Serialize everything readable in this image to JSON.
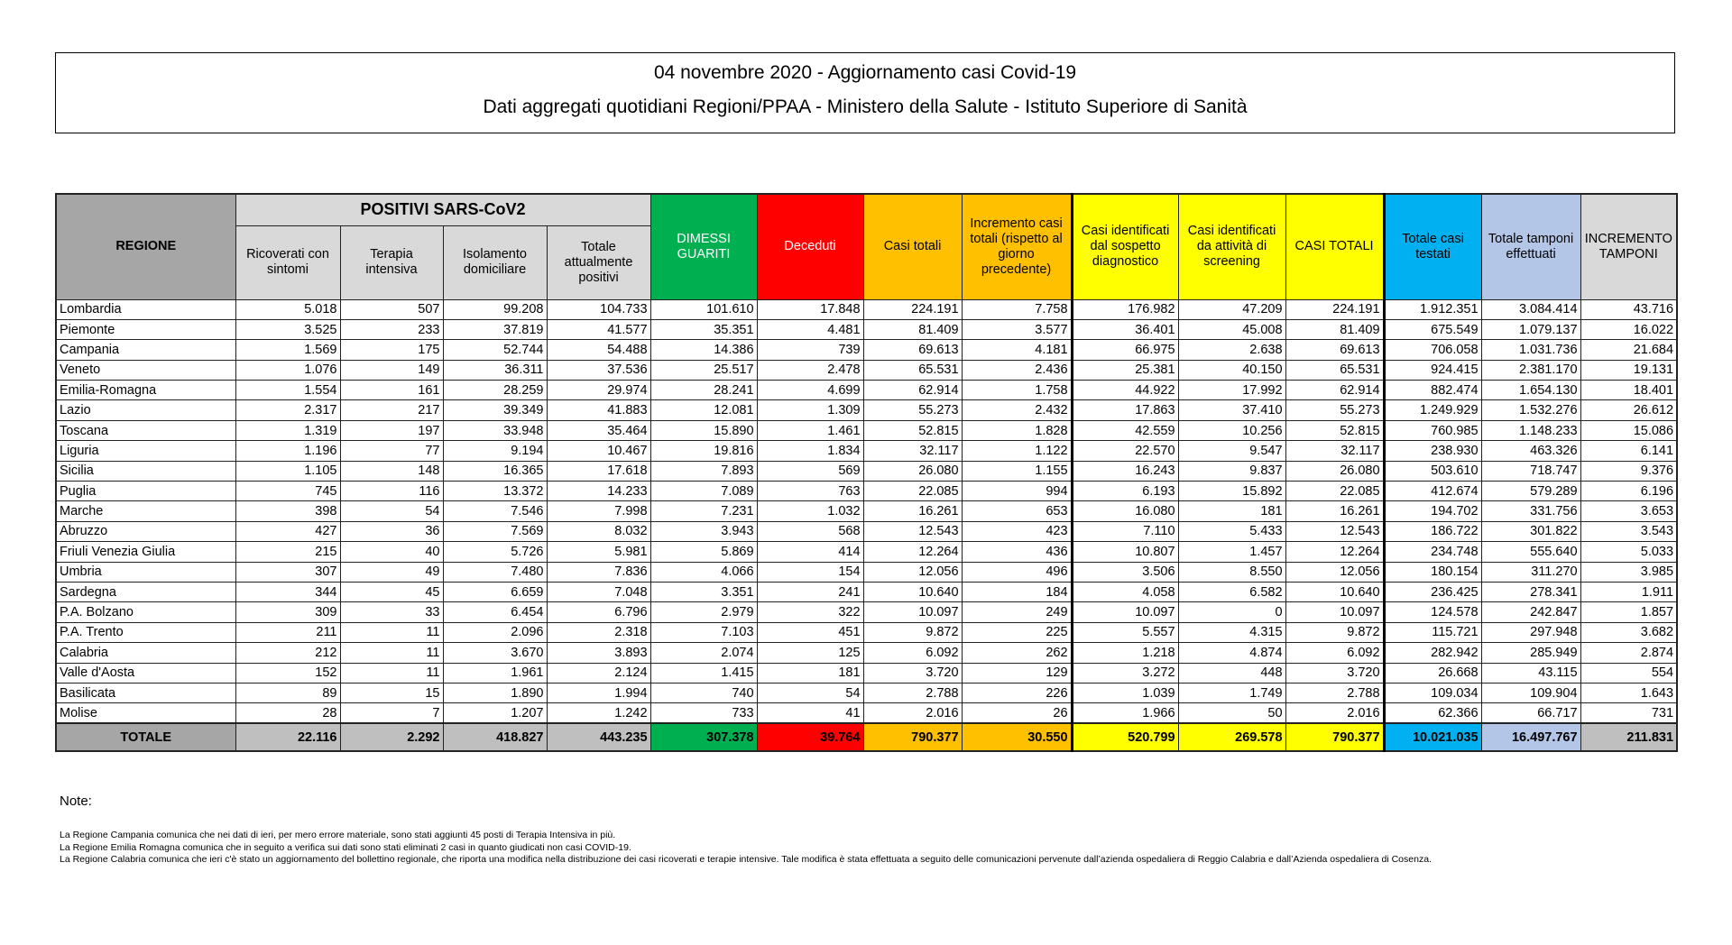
{
  "header": {
    "title": "04 novembre 2020 - Aggiornamento casi Covid-19",
    "subtitle": "Dati aggregati quotidiani Regioni/PPAA - Ministero della Salute - Istituto Superiore di Sanità"
  },
  "table": {
    "group_header": "POSITIVI SARS-CoV2",
    "columns": [
      "REGIONE",
      "Ricoverati con sintomi",
      "Terapia intensiva",
      "Isolamento domiciliare",
      "Totale attualmente positivi",
      "DIMESSI GUARITI",
      "Deceduti",
      "Casi totali",
      "Incremento casi totali (rispetto al giorno precedente)",
      "Casi identificati dal sospetto diagnostico",
      "Casi identificati da attività di screening",
      "CASI TOTALI",
      "Totale casi testati",
      "Totale tamponi effettuati",
      "INCREMENTO TAMPONI"
    ],
    "rows": [
      [
        "Lombardia",
        "5.018",
        "507",
        "99.208",
        "104.733",
        "101.610",
        "17.848",
        "224.191",
        "7.758",
        "176.982",
        "47.209",
        "224.191",
        "1.912.351",
        "3.084.414",
        "43.716"
      ],
      [
        "Piemonte",
        "3.525",
        "233",
        "37.819",
        "41.577",
        "35.351",
        "4.481",
        "81.409",
        "3.577",
        "36.401",
        "45.008",
        "81.409",
        "675.549",
        "1.079.137",
        "16.022"
      ],
      [
        "Campania",
        "1.569",
        "175",
        "52.744",
        "54.488",
        "14.386",
        "739",
        "69.613",
        "4.181",
        "66.975",
        "2.638",
        "69.613",
        "706.058",
        "1.031.736",
        "21.684"
      ],
      [
        "Veneto",
        "1.076",
        "149",
        "36.311",
        "37.536",
        "25.517",
        "2.478",
        "65.531",
        "2.436",
        "25.381",
        "40.150",
        "65.531",
        "924.415",
        "2.381.170",
        "19.131"
      ],
      [
        "Emilia-Romagna",
        "1.554",
        "161",
        "28.259",
        "29.974",
        "28.241",
        "4.699",
        "62.914",
        "1.758",
        "44.922",
        "17.992",
        "62.914",
        "882.474",
        "1.654.130",
        "18.401"
      ],
      [
        "Lazio",
        "2.317",
        "217",
        "39.349",
        "41.883",
        "12.081",
        "1.309",
        "55.273",
        "2.432",
        "17.863",
        "37.410",
        "55.273",
        "1.249.929",
        "1.532.276",
        "26.612"
      ],
      [
        "Toscana",
        "1.319",
        "197",
        "33.948",
        "35.464",
        "15.890",
        "1.461",
        "52.815",
        "1.828",
        "42.559",
        "10.256",
        "52.815",
        "760.985",
        "1.148.233",
        "15.086"
      ],
      [
        "Liguria",
        "1.196",
        "77",
        "9.194",
        "10.467",
        "19.816",
        "1.834",
        "32.117",
        "1.122",
        "22.570",
        "9.547",
        "32.117",
        "238.930",
        "463.326",
        "6.141"
      ],
      [
        "Sicilia",
        "1.105",
        "148",
        "16.365",
        "17.618",
        "7.893",
        "569",
        "26.080",
        "1.155",
        "16.243",
        "9.837",
        "26.080",
        "503.610",
        "718.747",
        "9.376"
      ],
      [
        "Puglia",
        "745",
        "116",
        "13.372",
        "14.233",
        "7.089",
        "763",
        "22.085",
        "994",
        "6.193",
        "15.892",
        "22.085",
        "412.674",
        "579.289",
        "6.196"
      ],
      [
        "Marche",
        "398",
        "54",
        "7.546",
        "7.998",
        "7.231",
        "1.032",
        "16.261",
        "653",
        "16.080",
        "181",
        "16.261",
        "194.702",
        "331.756",
        "3.653"
      ],
      [
        "Abruzzo",
        "427",
        "36",
        "7.569",
        "8.032",
        "3.943",
        "568",
        "12.543",
        "423",
        "7.110",
        "5.433",
        "12.543",
        "186.722",
        "301.822",
        "3.543"
      ],
      [
        "Friuli Venezia Giulia",
        "215",
        "40",
        "5.726",
        "5.981",
        "5.869",
        "414",
        "12.264",
        "436",
        "10.807",
        "1.457",
        "12.264",
        "234.748",
        "555.640",
        "5.033"
      ],
      [
        "Umbria",
        "307",
        "49",
        "7.480",
        "7.836",
        "4.066",
        "154",
        "12.056",
        "496",
        "3.506",
        "8.550",
        "12.056",
        "180.154",
        "311.270",
        "3.985"
      ],
      [
        "Sardegna",
        "344",
        "45",
        "6.659",
        "7.048",
        "3.351",
        "241",
        "10.640",
        "184",
        "4.058",
        "6.582",
        "10.640",
        "236.425",
        "278.341",
        "1.911"
      ],
      [
        "P.A. Bolzano",
        "309",
        "33",
        "6.454",
        "6.796",
        "2.979",
        "322",
        "10.097",
        "249",
        "10.097",
        "0",
        "10.097",
        "124.578",
        "242.847",
        "1.857"
      ],
      [
        "P.A. Trento",
        "211",
        "11",
        "2.096",
        "2.318",
        "7.103",
        "451",
        "9.872",
        "225",
        "5.557",
        "4.315",
        "9.872",
        "115.721",
        "297.948",
        "3.682"
      ],
      [
        "Calabria",
        "212",
        "11",
        "3.670",
        "3.893",
        "2.074",
        "125",
        "6.092",
        "262",
        "1.218",
        "4.874",
        "6.092",
        "282.942",
        "285.949",
        "2.874"
      ],
      [
        "Valle d'Aosta",
        "152",
        "11",
        "1.961",
        "2.124",
        "1.415",
        "181",
        "3.720",
        "129",
        "3.272",
        "448",
        "3.720",
        "26.668",
        "43.115",
        "554"
      ],
      [
        "Basilicata",
        "89",
        "15",
        "1.890",
        "1.994",
        "740",
        "54",
        "2.788",
        "226",
        "1.039",
        "1.749",
        "2.788",
        "109.034",
        "109.904",
        "1.643"
      ],
      [
        "Molise",
        "28",
        "7",
        "1.207",
        "1.242",
        "733",
        "41",
        "2.016",
        "26",
        "1.966",
        "50",
        "2.016",
        "62.366",
        "66.717",
        "731"
      ]
    ],
    "total": [
      "TOTALE",
      "22.116",
      "2.292",
      "418.827",
      "443.235",
      "307.378",
      "39.764",
      "790.377",
      "30.550",
      "520.799",
      "269.578",
      "790.377",
      "10.021.035",
      "16.497.767",
      "211.831"
    ]
  },
  "notes": {
    "label": "Note:",
    "lines": [
      "La Regione Campania comunica che nei dati di ieri, per mero errore materiale, sono stati aggiunti 45 posti di Terapia Intensiva in più.",
      "La Regione Emilia Romagna comunica che in seguito a verifica sui dati sono stati eliminati 2 casi in quanto giudicati non casi COVID-19.",
      "La Regione Calabria comunica che ieri c'è stato un aggiornamento del bollettino regionale, che riporta una modifica nella distribuzione dei casi ricoverati e terapie intensive. Tale modifica è stata effettuata a seguito delle comunicazioni pervenute dall’azienda ospedaliera di Reggio Calabria e dall’Azienda ospedaliera di Cosenza."
    ]
  },
  "colors": {
    "green": "#00b050",
    "red": "#ff0000",
    "orange": "#ffc000",
    "yellow": "#ffff00",
    "blue": "#00b0f0",
    "lightblue": "#b4c6e7",
    "grey": "#a6a6a6"
  }
}
